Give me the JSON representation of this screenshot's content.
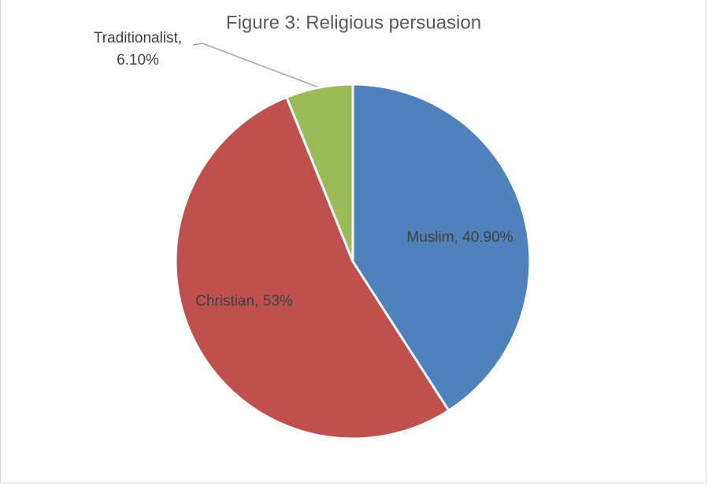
{
  "chart_data": {
    "type": "pie",
    "title": "Figure 3: Religious persuasion",
    "categories": [
      "Muslim",
      "Christian",
      "Traditionalist"
    ],
    "values": [
      40.9,
      53,
      6.1
    ],
    "value_labels": [
      "Muslim, 40.90%",
      "Christian, 53%",
      "Traditionalist, 6.10%"
    ],
    "colors": [
      "#4f81bd",
      "#c0504d",
      "#9bbb59"
    ]
  }
}
